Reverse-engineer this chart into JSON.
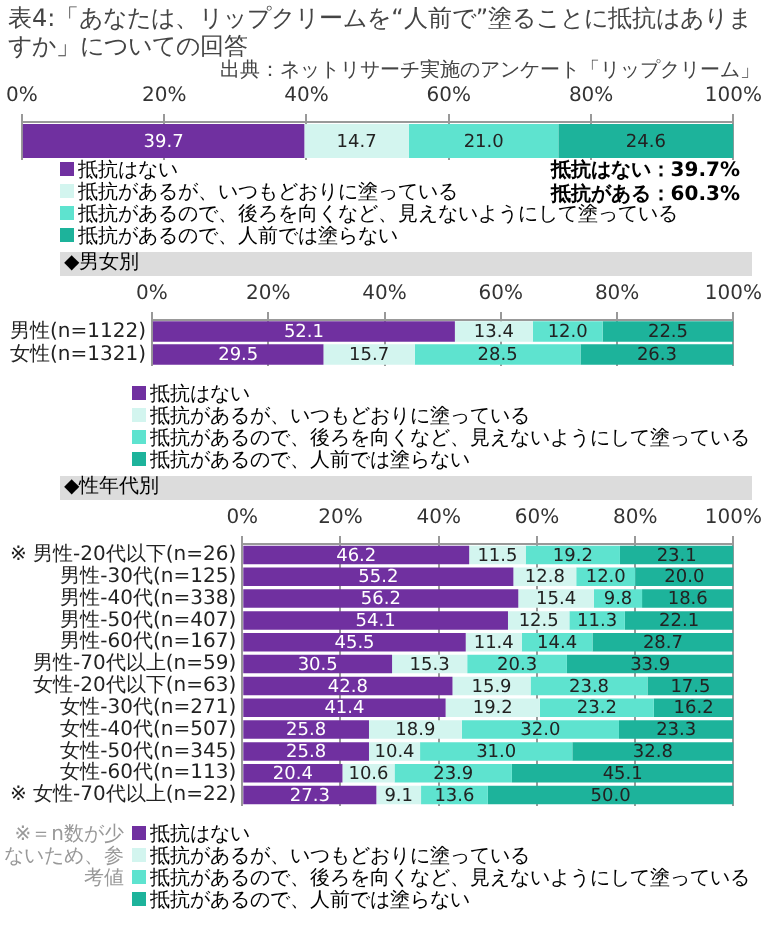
{
  "chart_data": [
    {
      "type": "bar",
      "orientation": "horizontal",
      "stacked": true,
      "title": "表4:「あなたは、リップクリームを“人前で”塗ることに抵抗はありますか」についての回答",
      "annotations": [
        "出典：ネットリサーチ実施のアンケート「リップクリーム」",
        "抵抗はない：39.7%",
        "抵抗がある：60.3%"
      ],
      "categories": [
        null
      ],
      "series": [
        {
          "name": "抵抗はない",
          "color": "#7030a0",
          "values": [
            39.7
          ],
          "value_labels": [
            "39.7"
          ]
        },
        {
          "name": "抵抗があるが、いつもどおりに塗っている",
          "color": "#d3f5ef",
          "values": [
            14.7
          ],
          "value_labels": [
            "14.7"
          ]
        },
        {
          "name": "抵抗があるので、後ろを向くなど、見えないようにして塗っている",
          "color": "#5ee3cf",
          "values": [
            21.0
          ],
          "value_labels": [
            "21.0"
          ]
        },
        {
          "name": "抵抗があるので、人前では塗らない",
          "color": "#1db39b",
          "values": [
            24.6
          ],
          "value_labels": [
            "24.6"
          ]
        }
      ],
      "xlim": [
        0,
        100
      ],
      "xticks": [
        {
          "value": 0,
          "label": "0%"
        },
        {
          "value": 20,
          "label": "20%"
        },
        {
          "value": 40,
          "label": "40%"
        },
        {
          "value": 60,
          "label": "60%"
        },
        {
          "value": 80,
          "label": "80%"
        },
        {
          "value": 100,
          "label": "100%"
        }
      ],
      "grid": "x",
      "legend": "bottom",
      "tick_labels": "x"
    },
    {
      "type": "bar",
      "orientation": "horizontal",
      "stacked": true,
      "subtitle": "◆男女別",
      "categories": [
        "男性(n=1122)",
        "女性(n=1321)"
      ],
      "series": [
        {
          "name": "抵抗はない",
          "color": "#7030a0",
          "values": [
            52.1,
            29.5
          ],
          "value_labels": [
            "52.1",
            "29.5"
          ]
        },
        {
          "name": "抵抗があるが、いつもどおりに塗っている",
          "color": "#d3f5ef",
          "values": [
            13.4,
            15.7
          ],
          "value_labels": [
            "13.4",
            "15.7"
          ]
        },
        {
          "name": "抵抗があるので、後ろを向くなど、見えないようにして塗っている",
          "color": "#5ee3cf",
          "values": [
            12.0,
            28.5
          ],
          "value_labels": [
            "12.0",
            "28.5"
          ]
        },
        {
          "name": "抵抗があるので、人前では塗らない",
          "color": "#1db39b",
          "values": [
            22.5,
            26.3
          ],
          "value_labels": [
            "22.5",
            "26.3"
          ]
        }
      ],
      "xlim": [
        0,
        100
      ],
      "xticks": [
        {
          "value": 0,
          "label": "0%"
        },
        {
          "value": 20,
          "label": "20%"
        },
        {
          "value": 40,
          "label": "40%"
        },
        {
          "value": 60,
          "label": "60%"
        },
        {
          "value": 80,
          "label": "80%"
        },
        {
          "value": 100,
          "label": "100%"
        }
      ],
      "grid": "x",
      "legend": "bottom"
    },
    {
      "type": "bar",
      "orientation": "horizontal",
      "stacked": true,
      "subtitle": "◆性年代別",
      "annotations": [
        "※＝n数が少ないため、参考値"
      ],
      "categories": [
        "※ 男性-20代以下(n=26)",
        "男性-30代(n=125)",
        "男性-40代(n=338)",
        "男性-50代(n=407)",
        "男性-60代(n=167)",
        "男性-70代以上(n=59)",
        "女性-20代以下(n=63)",
        "女性-30代(n=271)",
        "女性-40代(n=507)",
        "女性-50代(n=345)",
        "女性-60代(n=113)",
        "※ 女性-70代以上(n=22)"
      ],
      "series": [
        {
          "name": "抵抗はない",
          "color": "#7030a0",
          "values": [
            46.2,
            55.2,
            56.2,
            54.1,
            45.5,
            30.5,
            42.8,
            41.4,
            25.8,
            25.8,
            20.4,
            27.3
          ],
          "value_labels": [
            "46.2",
            "55.2",
            "56.2",
            "54.1",
            "45.5",
            "30.5",
            "42.8",
            "41.4",
            "25.8",
            "25.8",
            "20.4",
            "27.3"
          ]
        },
        {
          "name": "抵抗があるが、いつもどおりに塗っている",
          "color": "#d3f5ef",
          "values": [
            11.5,
            12.8,
            15.4,
            12.5,
            11.4,
            15.3,
            15.9,
            19.2,
            18.9,
            10.4,
            10.6,
            9.1
          ],
          "value_labels": [
            "11.5",
            "12.8",
            "15.4",
            "12.5",
            "11.4",
            "15.3",
            "15.9",
            "19.2",
            "18.9",
            "10.4",
            "10.6",
            "9.1"
          ]
        },
        {
          "name": "抵抗があるので、後ろを向くなど、見えないようにして塗っている",
          "color": "#5ee3cf",
          "values": [
            19.2,
            12.0,
            9.8,
            11.3,
            14.4,
            20.3,
            23.8,
            23.2,
            32.0,
            31.0,
            23.9,
            13.6
          ],
          "value_labels": [
            "19.2",
            "12.0",
            "9.8",
            "11.3",
            "14.4",
            "20.3",
            "23.8",
            "23.2",
            "32.0",
            "31.0",
            "23.9",
            "13.6"
          ]
        },
        {
          "name": "抵抗があるので、人前では塗らない",
          "color": "#1db39b",
          "values": [
            23.1,
            20.0,
            18.6,
            22.1,
            28.7,
            33.9,
            17.5,
            16.2,
            23.3,
            32.8,
            45.1,
            50.0
          ],
          "value_labels": [
            "23.1",
            "20.0",
            "18.6",
            "22.1",
            "28.7",
            "33.9",
            "17.5",
            "16.2",
            "23.3",
            "32.8",
            "45.1",
            "50.0"
          ]
        }
      ],
      "xlim": [
        0,
        100
      ],
      "xticks": [
        {
          "value": 0,
          "label": "0%"
        },
        {
          "value": 20,
          "label": "20%"
        },
        {
          "value": 40,
          "label": "40%"
        },
        {
          "value": 60,
          "label": "60%"
        },
        {
          "value": 80,
          "label": "80%"
        },
        {
          "value": 100,
          "label": "100%"
        }
      ],
      "grid": "x",
      "legend": "bottom"
    }
  ]
}
